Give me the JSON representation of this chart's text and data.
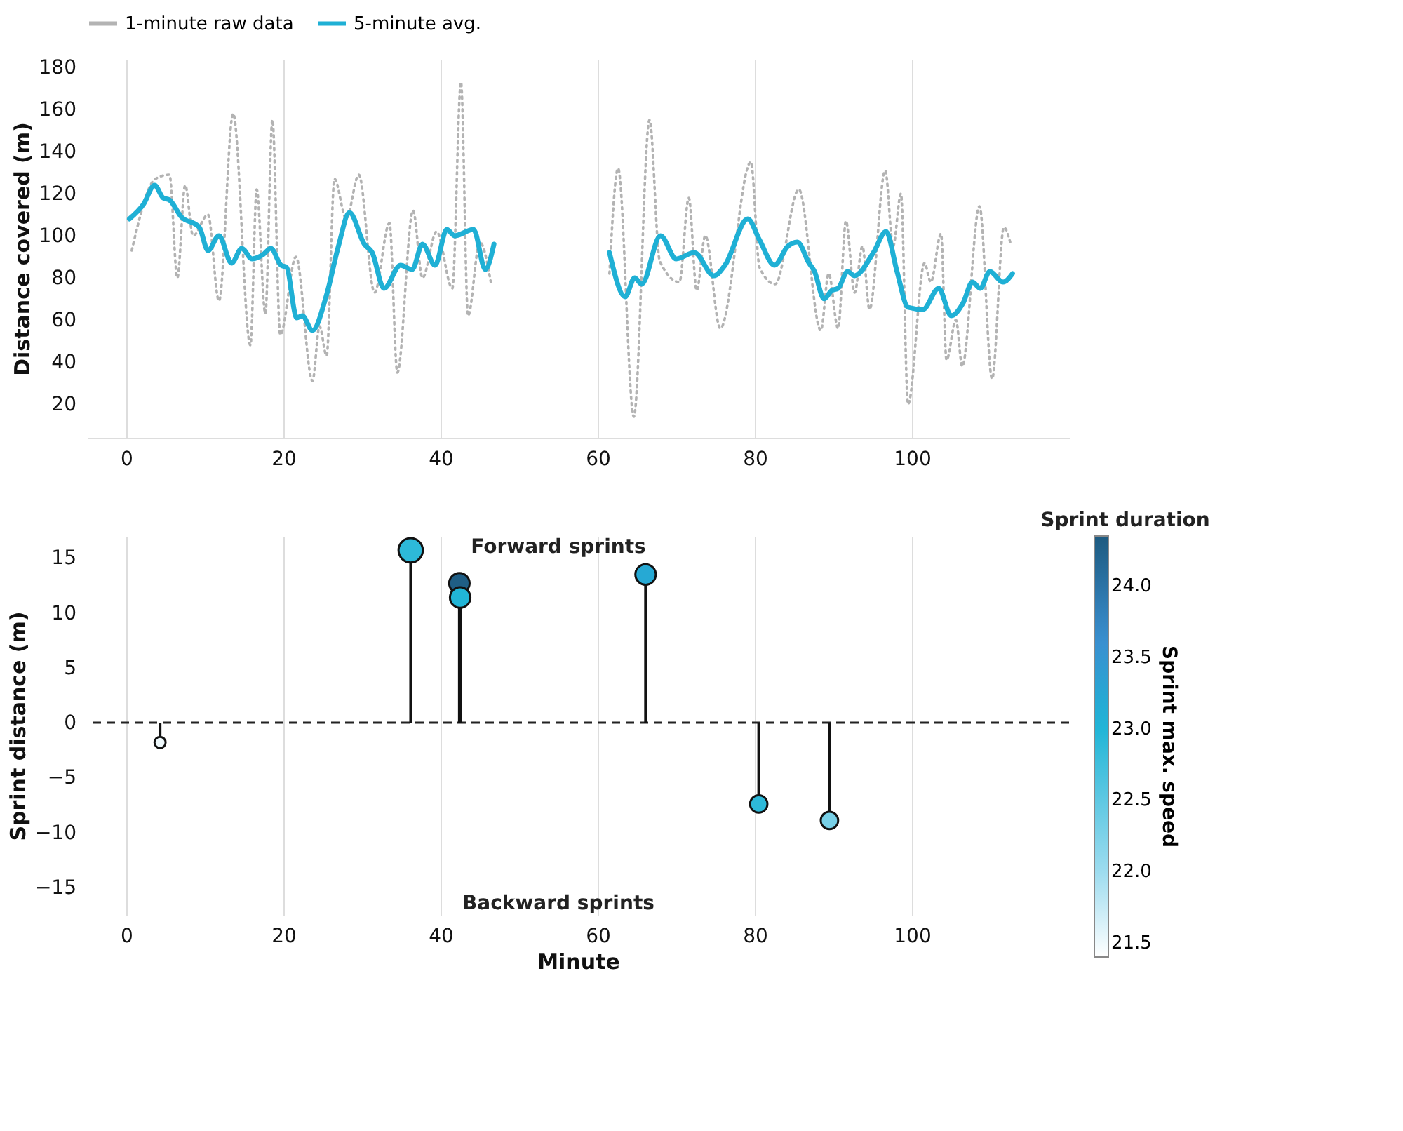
{
  "chart_data": [
    {
      "type": "line",
      "ylabel": "Distance covered (m)",
      "xlim": [
        -5,
        120
      ],
      "xticks": [
        0,
        20,
        40,
        60,
        80,
        100
      ],
      "ylim": [
        4,
        184
      ],
      "yticks": [
        20,
        40,
        60,
        80,
        100,
        120,
        140,
        160,
        180
      ],
      "grid": "x",
      "legend": "top",
      "series": [
        {
          "name": "1-minute raw data",
          "color": "#b3b3b3",
          "line_style": "dotted",
          "x": [
            0.7,
            3.7,
            5.5,
            6.5,
            7.5,
            8.5,
            10.4,
            11.8,
            13.6,
            15.8,
            16.6,
            17.7,
            18.6,
            19.6,
            21.6,
            23.7,
            24.6,
            25.5,
            26.5,
            28,
            29.6,
            31.6,
            33.5,
            34.5,
            36.5,
            37.7,
            39.5,
            41.5,
            42.6,
            43.5,
            45,
            46.4,
            54,
            61.5,
            62.6,
            64.6,
            66.6,
            67.9,
            70.4,
            71.6,
            72.6,
            73.7,
            75.6,
            79.5,
            80.6,
            82.6,
            85.6,
            88.4,
            89.4,
            90.6,
            91.6,
            92.7,
            93.7,
            94.6,
            96.6,
            97.6,
            98.6,
            99.5,
            101.6,
            102.4,
            103.7,
            104.4,
            105.6,
            106.4,
            108.6,
            110.2,
            111.7,
            112.5
          ],
          "values": [
            93,
            127,
            129,
            80,
            124,
            100,
            110,
            69,
            158,
            48,
            122,
            63,
            155,
            53,
            90,
            31,
            57,
            43,
            127,
            108,
            129,
            73,
            106,
            35,
            112,
            80,
            102,
            75,
            173,
            62,
            97,
            78,
            null,
            82,
            132,
            14,
            155,
            88,
            78,
            118,
            74,
            100,
            56,
            135,
            85,
            77,
            122,
            55,
            82,
            56,
            107,
            73,
            95,
            65,
            131,
            95,
            120,
            20,
            87,
            78,
            101,
            41,
            60,
            38,
            114,
            32,
            104,
            97
          ]
        },
        {
          "name": "5-minute avg.",
          "color": "#1fb0d5",
          "line_style": "solid",
          "x": [
            0.4,
            2.2,
            3.6,
            4.7,
            5.5,
            7.0,
            9.3,
            10.4,
            11.8,
            13.4,
            14.7,
            16.0,
            17.4,
            18.4,
            19.7,
            20.4,
            21.7,
            22.4,
            23.7,
            25.5,
            27.0,
            28.4,
            30.3,
            31.3,
            32.8,
            34.9,
            36.4,
            37.7,
            39.3,
            40.8,
            41.8,
            44.2,
            45.7,
            46.8,
            54,
            61.5,
            63.5,
            64.7,
            65.6,
            68.0,
            70.0,
            72.3,
            74.8,
            76.2,
            79.1,
            80.6,
            82.5,
            84.2,
            85.4,
            86.9,
            87.6,
            88.8,
            89.8,
            90.6,
            91.8,
            92.7,
            95.1,
            96.7,
            98.1,
            99.5,
            101.4,
            103.4,
            105.0,
            106.5,
            107.7,
            108.7,
            109.9,
            111.6,
            112.8
          ],
          "values": [
            108,
            115,
            124,
            118,
            117,
            109,
            104,
            93,
            100,
            87,
            94,
            89,
            91,
            94,
            86,
            85,
            61,
            62,
            55,
            72,
            95,
            111,
            96,
            92,
            75,
            86,
            84,
            96,
            86,
            103,
            100,
            103,
            84,
            96,
            null,
            92,
            71,
            80,
            77,
            100,
            89,
            92,
            81,
            86,
            108,
            98,
            86,
            95,
            97,
            87,
            83,
            70,
            74,
            75,
            83,
            81,
            92,
            102,
            83,
            66,
            65,
            75,
            62,
            68,
            78,
            75,
            83,
            78,
            82
          ]
        }
      ]
    },
    {
      "type": "lollipop",
      "xlabel": "Minute",
      "ylabel": "Sprint distance (m)",
      "xlim": [
        -5,
        120
      ],
      "xticks": [
        0,
        20,
        40,
        60,
        80,
        100
      ],
      "ylim": [
        -17.5,
        17
      ],
      "yticks": [
        -15,
        -10,
        -5,
        0,
        5,
        10,
        15
      ],
      "grid": "x",
      "marker": "circle",
      "x": [
        4.3,
        36.2,
        42.4,
        42.5,
        66.1,
        80.5,
        89.5
      ],
      "values": [
        -1.8,
        15.7,
        12.7,
        11.4,
        13.5,
        -7.4,
        -8.9
      ],
      "sizes": [
        0.21,
        1,
        0.71,
        0.71,
        0.71,
        0.51,
        0.51
      ],
      "cvalues": [
        21.5,
        22.9,
        24.3,
        23.0,
        23.2,
        22.9,
        22.3
      ],
      "legend_title": "Sprint duration",
      "clabel": "Sprint max. speed",
      "clim": [
        21.4,
        24.35
      ],
      "cticks": [
        21.5,
        {
          "value": 22,
          "label": "22.0"
        },
        22.5,
        {
          "value": 23,
          "label": "23.0"
        },
        23.5,
        {
          "value": 24,
          "label": "24.0"
        }
      ],
      "ref_lines": [
        {
          "axis": "y",
          "value": 0,
          "line_style": "dashed",
          "color": "#222222"
        }
      ],
      "annotations": [
        "Forward sprints",
        "Backward sprints"
      ]
    }
  ]
}
